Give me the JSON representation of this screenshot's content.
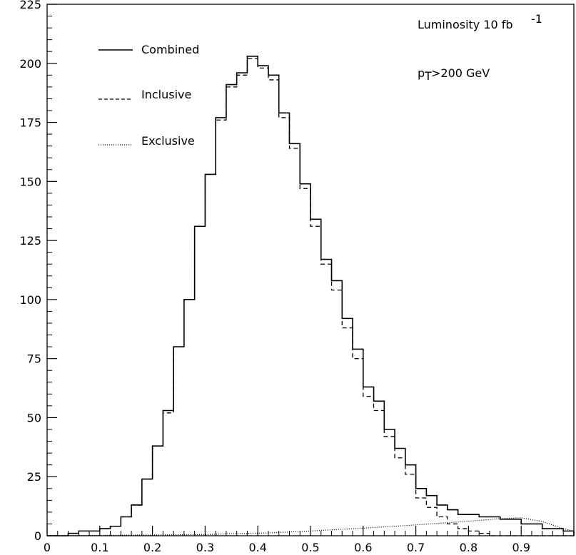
{
  "chart_data": {
    "type": "line",
    "xlim": [
      0,
      1
    ],
    "ylim": [
      0,
      225
    ],
    "x_ticks": [
      "0",
      "0.1",
      "0.2",
      "0.3",
      "0.4",
      "0.5",
      "0.6",
      "0.7",
      "0.8",
      "0.9"
    ],
    "y_ticks": [
      "0",
      "25",
      "50",
      "75",
      "100",
      "125",
      "150",
      "175",
      "200",
      "225"
    ],
    "grid": false,
    "legend_placement": "top-left",
    "bin_width": 0.02,
    "series": [
      {
        "name": "Combined",
        "line_style": "solid",
        "values": [
          0,
          0,
          1,
          2,
          2,
          3,
          4,
          8,
          13,
          24,
          38,
          53,
          80,
          100,
          131,
          153,
          177,
          191,
          196,
          203,
          199,
          195,
          179,
          166,
          149,
          134,
          117,
          108,
          92,
          79,
          63,
          57,
          45,
          37,
          30,
          20,
          17,
          13,
          11,
          9,
          9,
          8,
          8,
          7,
          7,
          5,
          5,
          3,
          3,
          2
        ]
      },
      {
        "name": "Inclusive",
        "line_style": "dashed",
        "values": [
          0,
          0,
          1,
          2,
          2,
          3,
          4,
          8,
          13,
          24,
          38,
          52,
          80,
          100,
          131,
          153,
          176,
          190,
          195,
          202,
          198,
          193,
          177,
          164,
          147,
          131,
          115,
          104,
          88,
          75,
          59,
          53,
          42,
          33,
          26,
          16,
          12,
          8,
          5,
          3,
          2,
          1,
          0,
          0,
          0,
          0,
          0,
          0,
          0,
          0
        ]
      },
      {
        "name": "Exclusive",
        "line_style": "dotted",
        "values": [
          0,
          0,
          0,
          0,
          0,
          0,
          0,
          0,
          0,
          0,
          0,
          0,
          0,
          0,
          0,
          0,
          0,
          0,
          0,
          0,
          0,
          0,
          0,
          0,
          0,
          0,
          0,
          0,
          0,
          0,
          0,
          0,
          0,
          0,
          0,
          0,
          0,
          0,
          0,
          0,
          0,
          0,
          0,
          0,
          0,
          0,
          0,
          0,
          0,
          0
        ]
      }
    ],
    "exclusive_points": [
      [
        0.3,
        0.5
      ],
      [
        0.34,
        0.8
      ],
      [
        0.38,
        1
      ],
      [
        0.42,
        1.2
      ],
      [
        0.46,
        1.6
      ],
      [
        0.5,
        2
      ],
      [
        0.54,
        2.5
      ],
      [
        0.58,
        3
      ],
      [
        0.62,
        3.5
      ],
      [
        0.66,
        4
      ],
      [
        0.7,
        4.6
      ],
      [
        0.74,
        5.2
      ],
      [
        0.78,
        5.8
      ],
      [
        0.82,
        6.5
      ],
      [
        0.86,
        7.2
      ],
      [
        0.9,
        7.6
      ],
      [
        0.94,
        6
      ],
      [
        0.98,
        3
      ],
      [
        1.0,
        2
      ]
    ],
    "annotations": [
      "Luminosity 10 fb",
      "-1",
      "p",
      "T",
      ">200 GeV"
    ]
  }
}
